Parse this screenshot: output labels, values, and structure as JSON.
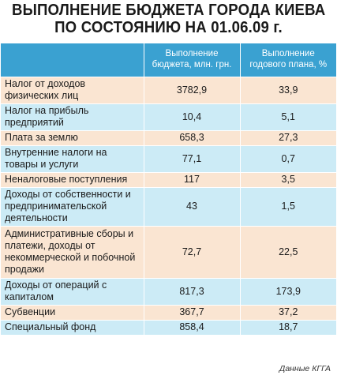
{
  "title": {
    "line1": "ВЫПОЛНЕНИЕ БЮДЖЕТА ГОРОДА КИЕВА",
    "line2": "ПО СОСТОЯНИЮ НА 01.06.09 г."
  },
  "table": {
    "headers": [
      "",
      "Выполнение бюджета, млн. грн.",
      "Выполнение годового плана, %"
    ],
    "rows": [
      {
        "label": "Налог от доходов физических лиц",
        "budget": "3782,9",
        "plan": "33,9"
      },
      {
        "label": "Налог на прибыль предприятий",
        "budget": "10,4",
        "plan": "5,1"
      },
      {
        "label": "Плата за землю",
        "budget": "658,3",
        "plan": "27,3"
      },
      {
        "label": "Внутренние налоги на товары и услуги",
        "budget": "77,1",
        "plan": "0,7"
      },
      {
        "label": "Неналоговые поступления",
        "budget": "117",
        "plan": "3,5"
      },
      {
        "label": "Доходы от собственности и предпринимательской деятельности",
        "budget": "43",
        "plan": "1,5"
      },
      {
        "label": "Административные сборы и платежи, доходы от некоммерческой и побочной продажи",
        "budget": "72,7",
        "plan": "22,5"
      },
      {
        "label": "Доходы от операций с капиталом",
        "budget": "817,3",
        "plan": "173,9"
      },
      {
        "label": "Субвенции",
        "budget": "367,7",
        "plan": "37,2"
      },
      {
        "label": "Специальный фонд",
        "budget": "858,4",
        "plan": "18,7"
      }
    ]
  },
  "source": "Данные КГГА",
  "colors": {
    "header_bg": "#3aa1d1",
    "row_odd": "#fae5d2",
    "row_even": "#ccebf6"
  }
}
